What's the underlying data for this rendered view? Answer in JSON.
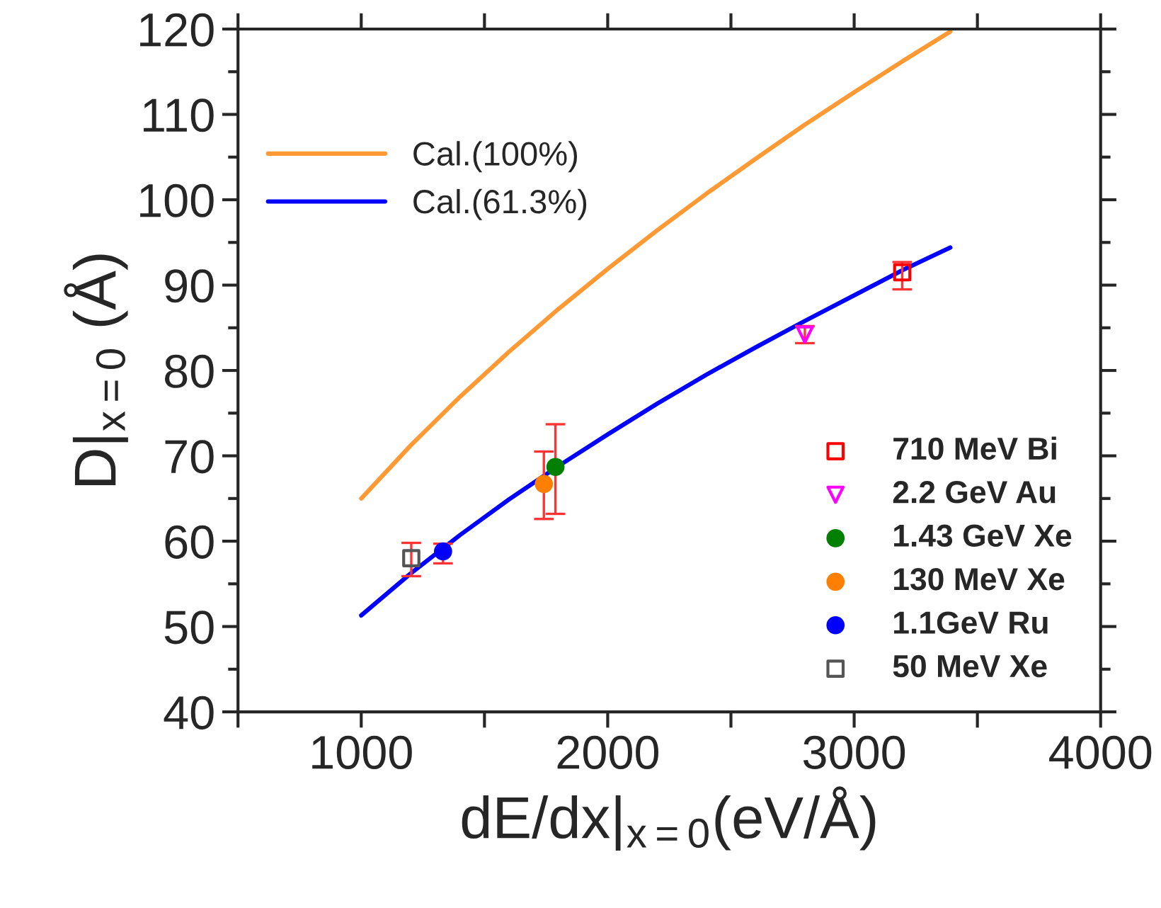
{
  "chart_data": {
    "type": "line",
    "xlabel": "dE/dx|$_{x=0}$(eV/Å)",
    "ylabel": "D|$_{x=0}$ (Å)",
    "xlim": [
      500,
      4000
    ],
    "xticks": [
      {
        "value": 500,
        "label": null
      },
      1000,
      {
        "value": 1500,
        "label": null
      },
      2000,
      {
        "value": 2500,
        "label": null
      },
      3000,
      {
        "value": 3500,
        "label": null
      },
      4000
    ],
    "ylim": [
      40,
      120
    ],
    "yticks": [
      40,
      50,
      60,
      70,
      80,
      90,
      100,
      110,
      120
    ],
    "grid": false,
    "legend": "bottom right",
    "series": [
      {
        "name": "Cal.(100%)",
        "type": "line",
        "color": "#ff9933",
        "marker": "none",
        "line_style": "solid",
        "x": [
          1000,
          1200,
          1400,
          1600,
          1800,
          2000,
          2200,
          2400,
          2600,
          2800,
          3000,
          3200,
          3390
        ],
        "values": [
          65.0,
          71.2,
          76.9,
          82.2,
          87.2,
          91.9,
          96.4,
          100.7,
          104.8,
          108.8,
          112.6,
          116.3,
          119.7
        ]
      },
      {
        "name": "Cal.(61.3%)",
        "type": "line",
        "color": "#0000ff",
        "marker": "none",
        "line_style": "solid",
        "x": [
          1000,
          1200,
          1400,
          1600,
          1800,
          2000,
          2200,
          2400,
          2600,
          2800,
          3000,
          3200,
          3390
        ],
        "values": [
          51.3,
          56.2,
          60.7,
          64.9,
          68.8,
          72.5,
          76.1,
          79.5,
          82.7,
          85.8,
          88.8,
          91.8,
          94.4
        ]
      },
      {
        "name": "710 MeV Bi",
        "type": "scatter",
        "color": "#ff0000",
        "marker": "square",
        "x": [
          3195
        ],
        "values": [
          91.5
        ],
        "errors": [
          [
            89.5,
            92.7
          ]
        ]
      },
      {
        "name": "2.2 GeV Au",
        "type": "scatter",
        "color": "#ff00ff",
        "marker": "triangle",
        "x": [
          2800
        ],
        "values": [
          84.2
        ],
        "errors": [
          [
            83.2,
            85.2
          ]
        ]
      },
      {
        "name": "1.43 GeV Xe",
        "type": "scatter",
        "color": "#007f00",
        "marker": "circle",
        "x": [
          1788
        ],
        "values": [
          68.7
        ],
        "errors": [
          [
            63.2,
            73.7
          ]
        ]
      },
      {
        "name": "130 MeV Xe",
        "type": "scatter",
        "color": "#ff8000",
        "marker": "circle",
        "x": [
          1741
        ],
        "values": [
          66.7
        ],
        "errors": [
          [
            62.6,
            70.5
          ]
        ]
      },
      {
        "name": "1.1GeV Ru",
        "type": "scatter",
        "color": "#0000ff",
        "marker": "circle",
        "x": [
          1332
        ],
        "values": [
          58.8
        ],
        "errors": [
          [
            57.4,
            59.7
          ]
        ]
      },
      {
        "name": "50 MeV Xe",
        "type": "scatter",
        "color": "#555555",
        "marker": "square",
        "x": [
          1203
        ],
        "values": [
          58.0
        ],
        "errors": [
          [
            55.9,
            59.8
          ]
        ]
      }
    ]
  }
}
